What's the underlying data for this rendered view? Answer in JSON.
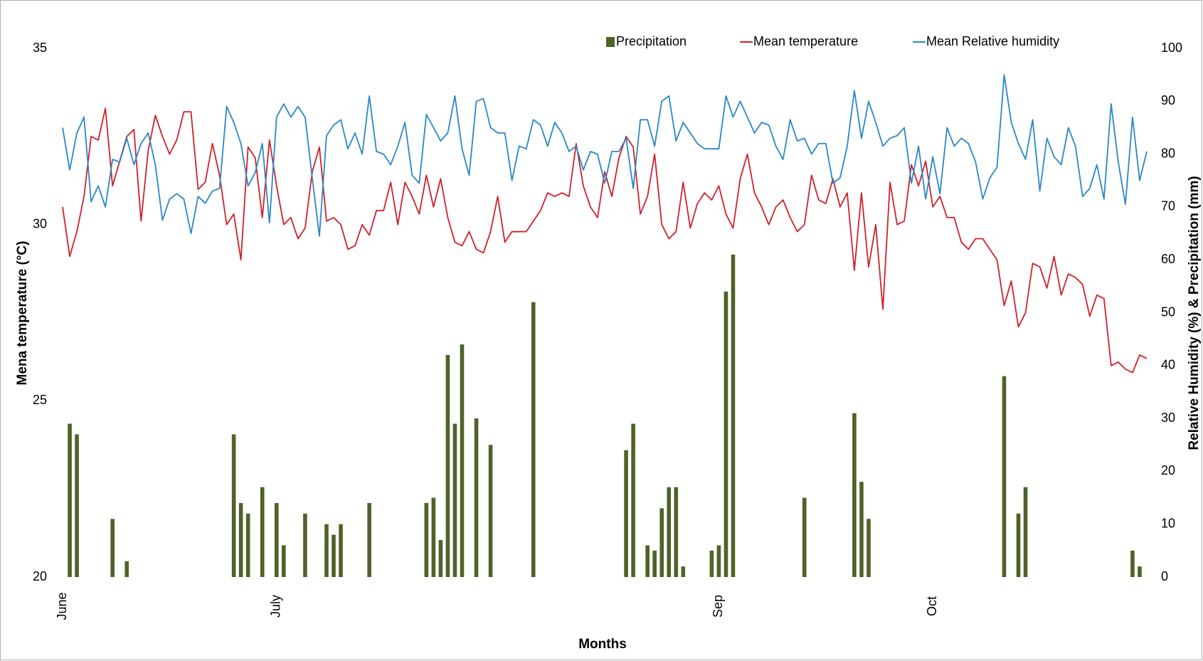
{
  "chart_data": {
    "type": "combo",
    "categories": [
      "June",
      null,
      null,
      null,
      null,
      null,
      null,
      null,
      null,
      null,
      null,
      null,
      null,
      null,
      null,
      null,
      null,
      null,
      null,
      null,
      null,
      null,
      null,
      null,
      null,
      null,
      null,
      null,
      null,
      null,
      "July",
      null,
      null,
      null,
      null,
      null,
      null,
      null,
      null,
      null,
      null,
      null,
      null,
      null,
      null,
      null,
      null,
      null,
      null,
      null,
      null,
      null,
      null,
      null,
      null,
      null,
      null,
      null,
      null,
      null,
      null,
      null,
      null,
      null,
      null,
      null,
      null,
      null,
      null,
      null,
      null,
      null,
      null,
      null,
      null,
      null,
      null,
      null,
      null,
      null,
      null,
      null,
      null,
      null,
      null,
      null,
      null,
      null,
      null,
      null,
      null,
      null,
      "Sep",
      null,
      null,
      null,
      null,
      null,
      null,
      null,
      null,
      null,
      null,
      null,
      null,
      null,
      null,
      null,
      null,
      null,
      null,
      null,
      null,
      null,
      null,
      null,
      null,
      null,
      null,
      null,
      null,
      null,
      "Oct",
      null,
      null,
      null,
      null,
      null,
      null,
      null,
      null,
      null,
      null,
      null,
      null,
      null,
      null,
      null,
      null,
      null,
      null,
      null,
      null,
      null,
      null,
      null,
      null,
      null,
      null,
      null,
      null,
      null,
      null
    ],
    "xlabel": "Months",
    "ylabel": "Mena temperature (°C)",
    "y2label": "Relative Humidity (%) & Precipitation (mm)",
    "ylim": [
      20,
      35
    ],
    "yticks": [
      20,
      25,
      30,
      35
    ],
    "y2lim": [
      0,
      100
    ],
    "y2ticks": [
      0,
      10,
      20,
      30,
      40,
      50,
      60,
      70,
      80,
      90,
      100
    ],
    "grid": false,
    "legend": "top",
    "series": [
      {
        "name": "Precipitation",
        "type": "bar",
        "axis": "y2",
        "color": "#4f6228",
        "values": [
          0,
          29,
          27,
          0,
          0,
          0,
          0,
          11,
          0,
          3,
          0,
          0,
          0,
          0,
          0,
          0,
          0,
          0,
          0,
          0,
          0,
          0,
          0,
          0,
          27,
          14,
          12,
          0,
          17,
          0,
          14,
          6,
          0,
          0,
          12,
          0,
          0,
          10,
          8,
          10,
          0,
          0,
          0,
          14,
          0,
          0,
          0,
          0,
          0,
          0,
          0,
          14,
          15,
          7,
          42,
          29,
          44,
          0,
          30,
          0,
          25,
          0,
          0,
          0,
          0,
          0,
          52,
          0,
          0,
          0,
          0,
          0,
          0,
          0,
          0,
          0,
          0,
          0,
          0,
          24,
          29,
          0,
          6,
          5,
          13,
          17,
          17,
          2,
          0,
          0,
          0,
          5,
          6,
          54,
          61,
          0,
          0,
          0,
          0,
          0,
          0,
          0,
          0,
          0,
          15,
          0,
          0,
          0,
          0,
          0,
          0,
          31,
          18,
          11,
          0,
          0,
          0,
          0,
          0,
          0,
          0,
          0,
          0,
          0,
          0,
          0,
          0,
          0,
          0,
          0,
          0,
          0,
          38,
          0,
          12,
          17,
          0,
          0,
          0,
          0,
          0,
          0,
          0,
          0,
          0,
          0,
          0,
          0,
          0,
          0,
          5,
          2,
          0
        ]
      },
      {
        "name": "Mean temperature",
        "type": "line",
        "axis": "y",
        "color": "#d0202a",
        "values": [
          30.5,
          29.1,
          29.8,
          30.8,
          32.5,
          32.4,
          33.3,
          31.1,
          31.8,
          32.5,
          32.7,
          30.1,
          32.1,
          33.1,
          32.5,
          32.0,
          32.4,
          33.2,
          33.2,
          31.0,
          31.2,
          32.3,
          31.4,
          30.0,
          30.3,
          29.0,
          32.2,
          31.9,
          30.2,
          32.4,
          31.1,
          30.0,
          30.2,
          29.6,
          29.9,
          31.5,
          32.2,
          30.1,
          30.2,
          30.0,
          29.3,
          29.4,
          30.0,
          29.7,
          30.4,
          30.4,
          31.2,
          30.0,
          31.2,
          30.8,
          30.3,
          31.4,
          30.5,
          31.3,
          30.2,
          29.5,
          29.4,
          29.8,
          29.3,
          29.2,
          29.8,
          30.8,
          29.5,
          29.8,
          29.8,
          29.8,
          30.1,
          30.4,
          30.9,
          30.8,
          30.9,
          30.8,
          32.3,
          31.1,
          30.5,
          30.2,
          31.5,
          30.8,
          31.9,
          32.5,
          32.2,
          30.3,
          30.8,
          32.0,
          30.0,
          29.6,
          29.8,
          31.2,
          29.9,
          30.6,
          30.9,
          30.7,
          31.1,
          30.3,
          29.9,
          31.3,
          32.0,
          30.9,
          30.5,
          30.0,
          30.5,
          30.7,
          30.2,
          29.8,
          30.0,
          31.4,
          30.7,
          30.6,
          31.3,
          30.5,
          30.9,
          28.7,
          30.9,
          28.8,
          30.0,
          27.6,
          31.2,
          30.0,
          30.1,
          31.7,
          31.1,
          31.8,
          30.5,
          30.8,
          30.2,
          30.2,
          29.5,
          29.3,
          29.6,
          29.6,
          29.3,
          29.0,
          27.7,
          28.4,
          27.1,
          27.5,
          28.9,
          28.8,
          28.2,
          29.1,
          28.0,
          28.6,
          28.5,
          28.3,
          27.4,
          28.0,
          27.9,
          26.0,
          26.1,
          25.9,
          25.8,
          26.3,
          26.2
        ]
      },
      {
        "name": "Mean Relative humidity",
        "type": "line",
        "axis": "y2",
        "color": "#2a87c8",
        "values": [
          85,
          77,
          84,
          87,
          71,
          74,
          70,
          79,
          78.5,
          83,
          78,
          82,
          84,
          78,
          67.5,
          71.5,
          72.5,
          71.5,
          65,
          72,
          70.7,
          73,
          73.5,
          89,
          86,
          82,
          74,
          76.5,
          82,
          67,
          87,
          89.5,
          87,
          89,
          87,
          75.5,
          64.5,
          83.5,
          85.5,
          86.5,
          81,
          84,
          80,
          91,
          80.5,
          80,
          78,
          81.5,
          86,
          76,
          74.5,
          87.5,
          85,
          82.5,
          84,
          91,
          81,
          76,
          90,
          90.5,
          85,
          84,
          84,
          75,
          81.5,
          81,
          86.5,
          85.5,
          81.5,
          86,
          84,
          80.5,
          81.5,
          77,
          80.5,
          80,
          74.5,
          80.5,
          80.5,
          83,
          73.5,
          86.5,
          86.5,
          81.5,
          90,
          91,
          82.5,
          86,
          84,
          82,
          81,
          81,
          81,
          91,
          87,
          90,
          87,
          84,
          86,
          85.5,
          81.5,
          79,
          86.5,
          82.5,
          83,
          80,
          82,
          82,
          74.5,
          75.5,
          81.5,
          92,
          83,
          90,
          86,
          81.5,
          83,
          83.5,
          85,
          74.5,
          81.5,
          71.5,
          79.5,
          72.5,
          85,
          81.5,
          83,
          82,
          78.5,
          71.5,
          75.5,
          77.5,
          95,
          86,
          82,
          79,
          86.5,
          73,
          83,
          79.5,
          78,
          85,
          81.5,
          72,
          73.5,
          78,
          71.5,
          89.5,
          78.5,
          70.5,
          87,
          75,
          80.5
        ]
      }
    ]
  }
}
